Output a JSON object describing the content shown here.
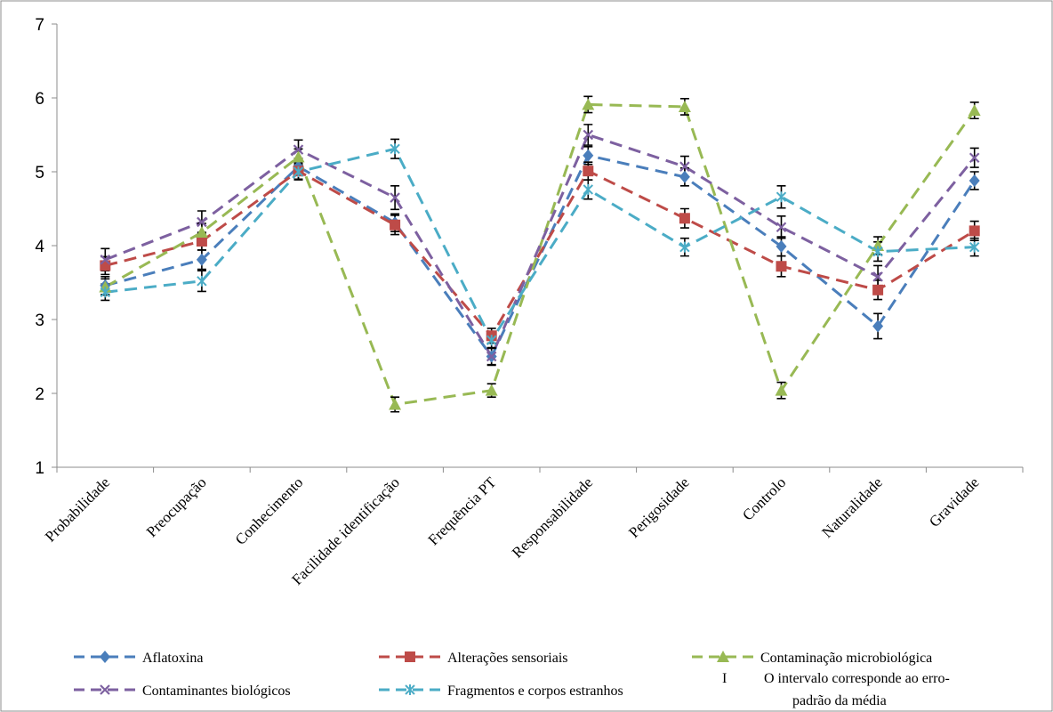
{
  "chart_data": {
    "type": "line",
    "categories": [
      "Probabilidade",
      "Preocupação",
      "Conhecimento",
      "Facilidade identificação",
      "Frequência PT",
      "Responsabilidade",
      "Perigosidade",
      "Controlo",
      "Naturalidade",
      "Gravidade"
    ],
    "ylim": [
      1,
      7
    ],
    "yticks": [
      "1",
      "2",
      "3",
      "4",
      "5",
      "6",
      "7"
    ],
    "grid": false,
    "legend_position": "bottom",
    "series": [
      {
        "name": "Aflatoxina",
        "color": "#4a7ebb",
        "marker": "diamond",
        "values": [
          3.46,
          3.81,
          5.07,
          4.31,
          2.5,
          5.22,
          4.93,
          3.99,
          2.91,
          4.88
        ],
        "errors": [
          0.12,
          0.13,
          0.11,
          0.12,
          0.11,
          0.12,
          0.12,
          0.13,
          0.17,
          0.12
        ]
      },
      {
        "name": "Alterações sensoriais",
        "color": "#be4b48",
        "marker": "square",
        "values": [
          3.73,
          4.06,
          5.01,
          4.28,
          2.78,
          5.01,
          4.37,
          3.72,
          3.4,
          4.2
        ],
        "errors": [
          0.12,
          0.12,
          0.11,
          0.13,
          0.1,
          0.12,
          0.13,
          0.14,
          0.13,
          0.13
        ]
      },
      {
        "name": "Contaminação microbiológica",
        "color": "#98b954",
        "marker": "triangle",
        "values": [
          3.44,
          4.18,
          5.2,
          1.85,
          2.04,
          5.91,
          5.88,
          2.04,
          4.0,
          5.83
        ],
        "errors": [
          0.11,
          0.12,
          0.11,
          0.1,
          0.09,
          0.11,
          0.11,
          0.11,
          0.12,
          0.11
        ]
      },
      {
        "name": "Contaminantes biológicos",
        "color": "#7d60a0",
        "marker": "x",
        "values": [
          3.81,
          4.32,
          5.3,
          4.65,
          2.5,
          5.5,
          5.07,
          4.25,
          3.58,
          5.19
        ],
        "errors": [
          0.15,
          0.15,
          0.13,
          0.16,
          0.12,
          0.14,
          0.14,
          0.15,
          0.15,
          0.13
        ]
      },
      {
        "name": "Fragmentos e corpos estranhos",
        "color": "#4bacc6",
        "marker": "star",
        "values": [
          3.37,
          3.52,
          5.0,
          5.31,
          2.72,
          4.76,
          3.98,
          4.66,
          3.92,
          3.98
        ],
        "errors": [
          0.11,
          0.14,
          0.11,
          0.13,
          0.11,
          0.13,
          0.12,
          0.15,
          0.13,
          0.12
        ]
      }
    ],
    "error_bar_note_symbol": "I",
    "error_bar_note_line1": "O intervalo corresponde ao  erro-",
    "error_bar_note_line2": "padrão da média"
  }
}
